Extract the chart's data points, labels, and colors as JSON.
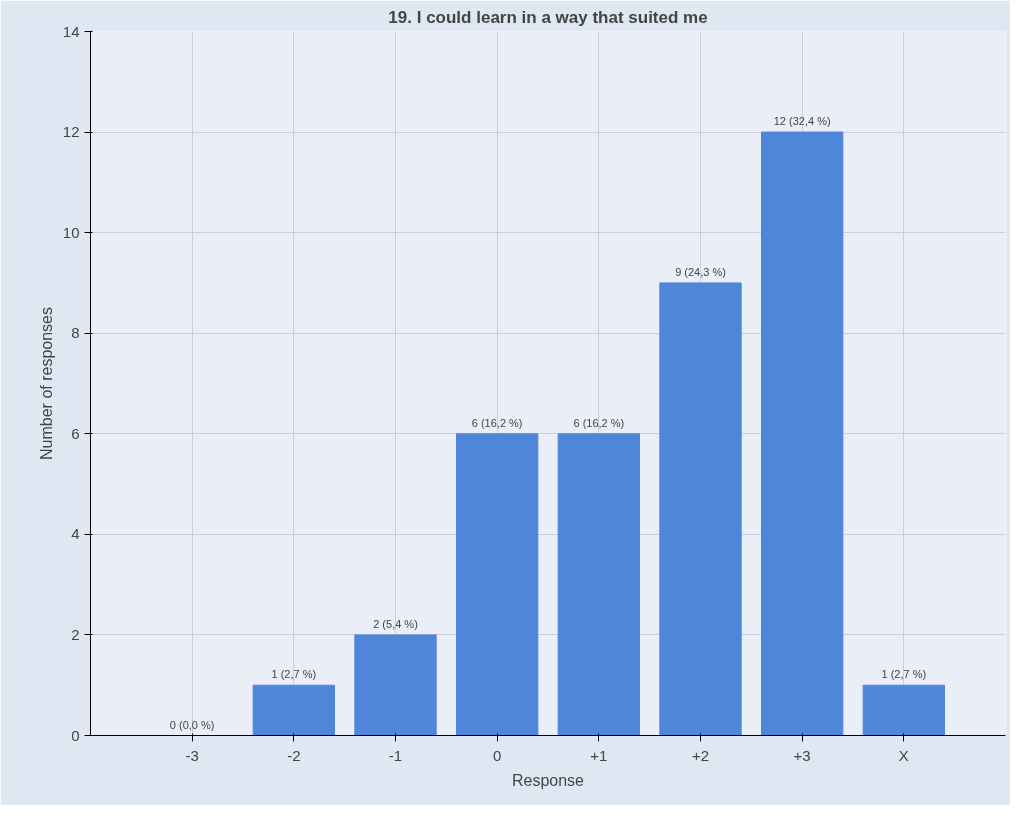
{
  "chart_data": {
    "type": "bar",
    "title": "19. I could learn in a way that suited me",
    "xlabel": "Response",
    "ylabel": "Number of responses",
    "categories": [
      "-3",
      "-2",
      "-1",
      "0",
      "+1",
      "+2",
      "+3",
      "X"
    ],
    "values": [
      0,
      1,
      2,
      6,
      6,
      9,
      12,
      1
    ],
    "value_labels": [
      "0 (0,0 %)",
      "1 (2,7 %)",
      "2 (5,4 %)",
      "6 (16,2 %)",
      "6 (16,2 %)",
      "9 (24,3 %)",
      "12 (32,4 %)",
      "1 (2,7 %)"
    ],
    "color": "#4f86d9",
    "ylim": [
      0,
      14
    ],
    "yticks": [
      0,
      2,
      4,
      6,
      8,
      10,
      12,
      14
    ],
    "grid": true
  }
}
